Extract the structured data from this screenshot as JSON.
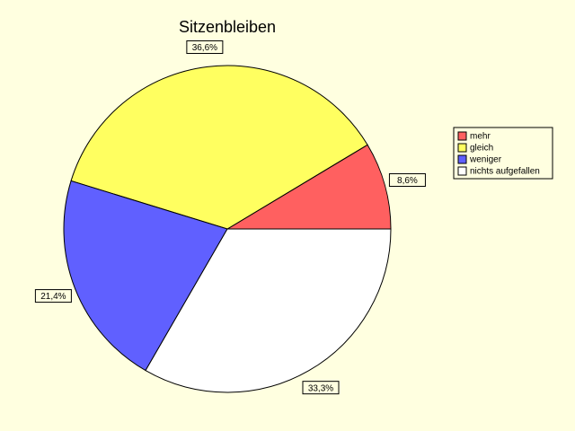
{
  "chart_data": {
    "type": "pie",
    "title": "Sitzenbleiben",
    "categories": [
      "mehr",
      "gleich",
      "weniger",
      "nichts aufgefallen"
    ],
    "values": [
      8.6,
      36.6,
      21.4,
      33.3
    ],
    "value_labels": [
      "8,6%",
      "36,6%",
      "21,4%",
      "33,3%"
    ],
    "colors": [
      "#ff6060",
      "#ffff60",
      "#6060ff",
      "#ffffff"
    ],
    "legend": "right"
  }
}
